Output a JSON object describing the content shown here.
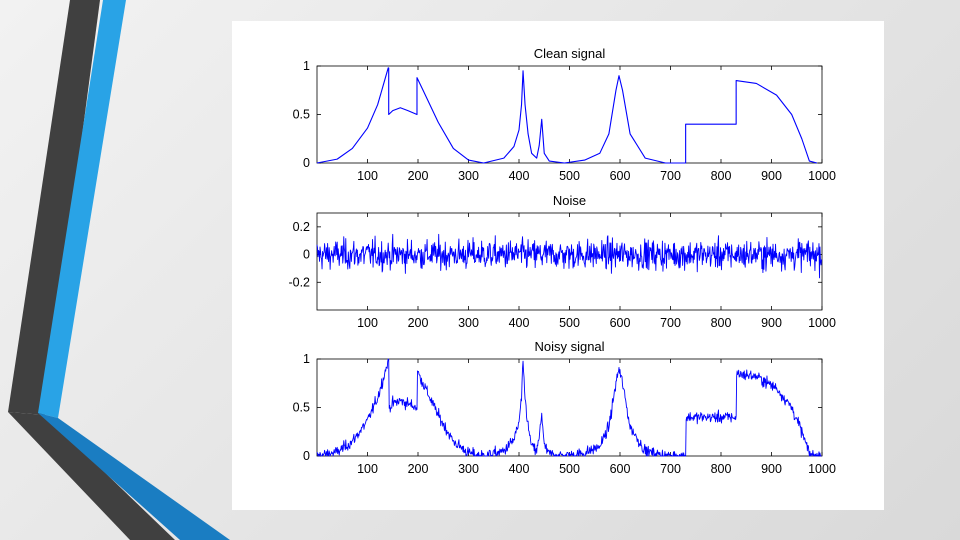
{
  "slide": {
    "accent_colors": {
      "dark": "#404040",
      "blue": "#29a3e6",
      "deep_blue": "#1a7dc2"
    }
  },
  "chart_data": [
    {
      "type": "line",
      "title": "Clean signal",
      "xlabel": "",
      "ylabel": "",
      "xlim": [
        0,
        1000
      ],
      "ylim": [
        0,
        1
      ],
      "x_ticks": [
        100,
        200,
        300,
        400,
        500,
        600,
        700,
        800,
        900,
        1000
      ],
      "y_ticks": [
        0,
        0.5,
        1
      ],
      "y_tick_labels": [
        "0",
        "0.5",
        "1"
      ],
      "series": [
        {
          "name": "Clean signal",
          "color": "#0000ff",
          "points": [
            [
              0,
              0.0
            ],
            [
              40,
              0.04
            ],
            [
              70,
              0.15
            ],
            [
              100,
              0.36
            ],
            [
              120,
              0.6
            ],
            [
              130,
              0.78
            ],
            [
              141,
              0.98
            ],
            [
              142,
              0.98
            ],
            [
              142,
              0.5
            ],
            [
              150,
              0.54
            ],
            [
              165,
              0.57
            ],
            [
              180,
              0.54
            ],
            [
              198,
              0.5
            ],
            [
              198,
              0.88
            ],
            [
              210,
              0.75
            ],
            [
              240,
              0.42
            ],
            [
              270,
              0.15
            ],
            [
              300,
              0.03
            ],
            [
              330,
              0.0
            ],
            [
              370,
              0.05
            ],
            [
              390,
              0.17
            ],
            [
              400,
              0.34
            ],
            [
              405,
              0.6
            ],
            [
              408,
              0.95
            ],
            [
              412,
              0.6
            ],
            [
              418,
              0.3
            ],
            [
              425,
              0.1
            ],
            [
              435,
              0.05
            ],
            [
              440,
              0.18
            ],
            [
              445,
              0.45
            ],
            [
              450,
              0.1
            ],
            [
              460,
              0.02
            ],
            [
              490,
              0.0
            ],
            [
              530,
              0.03
            ],
            [
              560,
              0.1
            ],
            [
              578,
              0.3
            ],
            [
              592,
              0.75
            ],
            [
              598,
              0.9
            ],
            [
              605,
              0.75
            ],
            [
              620,
              0.3
            ],
            [
              650,
              0.05
            ],
            [
              690,
              0.0
            ],
            [
              730,
              0.0
            ],
            [
              730,
              0.4
            ],
            [
              830,
              0.4
            ],
            [
              830,
              0.85
            ],
            [
              870,
              0.82
            ],
            [
              910,
              0.7
            ],
            [
              940,
              0.5
            ],
            [
              960,
              0.25
            ],
            [
              975,
              0.02
            ],
            [
              990,
              0.0
            ]
          ]
        }
      ]
    },
    {
      "type": "line",
      "title": "Noise",
      "xlabel": "",
      "ylabel": "",
      "xlim": [
        0,
        1000
      ],
      "ylim": [
        -0.4,
        0.3
      ],
      "x_ticks": [
        100,
        200,
        300,
        400,
        500,
        600,
        700,
        800,
        900,
        1000
      ],
      "y_ticks": [
        -0.2,
        0,
        0.2
      ],
      "y_tick_labels": [
        "-0.2",
        "0",
        "0.2"
      ],
      "series": [
        {
          "name": "Noise",
          "color": "#0000ff",
          "generator": "gaussian white noise",
          "mean": 0,
          "std": 0.075,
          "n": 1000,
          "clip": [
            -0.25,
            0.25
          ]
        }
      ]
    },
    {
      "type": "line",
      "title": "Noisy signal",
      "xlabel": "",
      "ylabel": "",
      "xlim": [
        0,
        1000
      ],
      "ylim": [
        0,
        1
      ],
      "x_ticks": [
        100,
        200,
        300,
        400,
        500,
        600,
        700,
        800,
        900,
        1000
      ],
      "y_ticks": [
        0,
        0.5,
        1
      ],
      "y_tick_labels": [
        "0",
        "0.5",
        "1"
      ],
      "series": [
        {
          "name": "Noisy signal",
          "color": "#0000ff",
          "composition": "clean signal + noise",
          "clip": [
            0,
            1
          ]
        }
      ]
    }
  ]
}
